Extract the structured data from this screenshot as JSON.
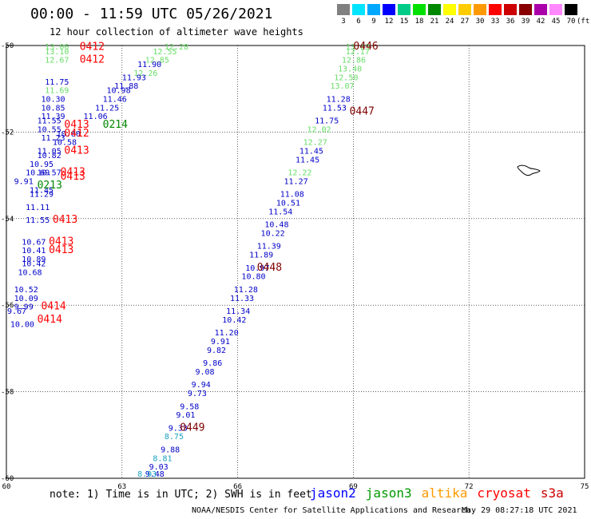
{
  "header": {
    "title": "00:00 - 11:59 UTC 05/26/2021",
    "subtitle": "12 hour collection of altimeter wave heights"
  },
  "legend": {
    "values": [
      "3",
      "6",
      "9",
      "12",
      "15",
      "18",
      "21",
      "24",
      "27",
      "30",
      "33",
      "36",
      "39",
      "42",
      "45",
      "70"
    ],
    "unit": "(ft)",
    "colors": [
      "#808080",
      "#00e5ff",
      "#00a8ff",
      "#0000ff",
      "#00cc88",
      "#00e000",
      "#008800",
      "#ffff00",
      "#ffcc00",
      "#ff9900",
      "#ff0000",
      "#cc0000",
      "#880000",
      "#aa00aa",
      "#ff88ff",
      "#000000"
    ]
  },
  "map": {
    "lon_ticks": [
      "60",
      "63",
      "66",
      "69",
      "72",
      "75"
    ],
    "lat_ticks": [
      "-50",
      "-52",
      "-54",
      "-56",
      "-58",
      "-60"
    ],
    "lon_range": [
      60,
      75
    ],
    "lat_range": [
      -60,
      -50
    ],
    "gridlines": true
  },
  "colors": {
    "blue": "#0000c8",
    "lightgreen": "#66dd66",
    "green": "#008800",
    "cyan": "#1aa0c0",
    "red": "#ff0000",
    "darkred": "#800000"
  },
  "observations": [
    {
      "v": "13.63",
      "lon": 68.8,
      "lat": -50.0,
      "c": "lightgreen"
    },
    {
      "v": "12.17",
      "lon": 68.8,
      "lat": -50.2,
      "c": "lightgreen"
    },
    {
      "v": "12.86",
      "lon": 68.7,
      "lat": -50.4,
      "c": "lightgreen"
    },
    {
      "v": "13.40",
      "lon": 68.6,
      "lat": -50.6,
      "c": "lightgreen"
    },
    {
      "v": "12.50",
      "lon": 68.5,
      "lat": -50.8,
      "c": "lightgreen"
    },
    {
      "v": "13.07",
      "lon": 68.4,
      "lat": -51.0,
      "c": "lightgreen"
    },
    {
      "v": "11.28",
      "lon": 68.3,
      "lat": -51.3,
      "c": "blue"
    },
    {
      "v": "11.53",
      "lon": 68.2,
      "lat": -51.5,
      "c": "blue"
    },
    {
      "v": "11.75",
      "lon": 68.0,
      "lat": -51.8,
      "c": "blue"
    },
    {
      "v": "12.02",
      "lon": 67.8,
      "lat": -52.0,
      "c": "lightgreen"
    },
    {
      "v": "12.27",
      "lon": 67.7,
      "lat": -52.3,
      "c": "lightgreen"
    },
    {
      "v": "11.45",
      "lon": 67.6,
      "lat": -52.5,
      "c": "blue"
    },
    {
      "v": "11.45",
      "lon": 67.5,
      "lat": -52.7,
      "c": "blue"
    },
    {
      "v": "12.22",
      "lon": 67.3,
      "lat": -53.0,
      "c": "lightgreen"
    },
    {
      "v": "11.27",
      "lon": 67.2,
      "lat": -53.2,
      "c": "blue"
    },
    {
      "v": "11.08",
      "lon": 67.1,
      "lat": -53.5,
      "c": "blue"
    },
    {
      "v": "10.51",
      "lon": 67.0,
      "lat": -53.7,
      "c": "blue"
    },
    {
      "v": "11.54",
      "lon": 66.8,
      "lat": -53.9,
      "c": "blue"
    },
    {
      "v": "10.48",
      "lon": 66.7,
      "lat": -54.2,
      "c": "blue"
    },
    {
      "v": "10.22",
      "lon": 66.6,
      "lat": -54.4,
      "c": "blue"
    },
    {
      "v": "11.39",
      "lon": 66.5,
      "lat": -54.7,
      "c": "blue"
    },
    {
      "v": "11.89",
      "lon": 66.3,
      "lat": -54.9,
      "c": "blue"
    },
    {
      "v": "10.97",
      "lon": 66.2,
      "lat": -55.2,
      "c": "blue"
    },
    {
      "v": "10.80",
      "lon": 66.1,
      "lat": -55.4,
      "c": "blue"
    },
    {
      "v": "11.28",
      "lon": 65.9,
      "lat": -55.7,
      "c": "blue"
    },
    {
      "v": "11.33",
      "lon": 65.8,
      "lat": -55.9,
      "c": "blue"
    },
    {
      "v": "11.34",
      "lon": 65.7,
      "lat": -56.2,
      "c": "blue"
    },
    {
      "v": "10.42",
      "lon": 65.6,
      "lat": -56.4,
      "c": "blue"
    },
    {
      "v": "11.20",
      "lon": 65.4,
      "lat": -56.7,
      "c": "blue"
    },
    {
      "v": "9.91",
      "lon": 65.3,
      "lat": -56.9,
      "c": "blue"
    },
    {
      "v": "9.82",
      "lon": 65.2,
      "lat": -57.1,
      "c": "blue"
    },
    {
      "v": "9.86",
      "lon": 65.1,
      "lat": -57.4,
      "c": "blue"
    },
    {
      "v": "9.08",
      "lon": 64.9,
      "lat": -57.6,
      "c": "blue"
    },
    {
      "v": "9.94",
      "lon": 64.8,
      "lat": -57.9,
      "c": "blue"
    },
    {
      "v": "9.73",
      "lon": 64.7,
      "lat": -58.1,
      "c": "blue"
    },
    {
      "v": "9.58",
      "lon": 64.5,
      "lat": -58.4,
      "c": "blue"
    },
    {
      "v": "9.01",
      "lon": 64.4,
      "lat": -58.6,
      "c": "blue"
    },
    {
      "v": "9.33",
      "lon": 64.2,
      "lat": -58.9,
      "c": "blue"
    },
    {
      "v": "8.75",
      "lon": 64.1,
      "lat": -59.1,
      "c": "cyan"
    },
    {
      "v": "9.88",
      "lon": 64.0,
      "lat": -59.4,
      "c": "blue"
    },
    {
      "v": "8.81",
      "lon": 63.8,
      "lat": -59.6,
      "c": "cyan"
    },
    {
      "v": "9.03",
      "lon": 63.7,
      "lat": -59.8,
      "c": "blue"
    },
    {
      "v": "9.48",
      "lon": 63.6,
      "lat": -60.1,
      "c": "blue"
    },
    {
      "v": "8.93",
      "lon": 63.4,
      "lat": -60.3,
      "c": "cyan"
    },
    {
      "v": "13.06",
      "lon": 61.0,
      "lat": -50.0,
      "c": "lightgreen"
    },
    {
      "v": "13.10",
      "lon": 61.0,
      "lat": -50.2,
      "c": "lightgreen"
    },
    {
      "v": "12.67",
      "lon": 61.0,
      "lat": -50.4,
      "c": "lightgreen"
    },
    {
      "v": "12.28",
      "lon": 64.1,
      "lat": -50.0,
      "c": "lightgreen"
    },
    {
      "v": "12.55",
      "lon": 63.8,
      "lat": -50.2,
      "c": "lightgreen"
    },
    {
      "v": "12.85",
      "lon": 63.6,
      "lat": -50.4,
      "c": "lightgreen"
    },
    {
      "v": "11.90",
      "lon": 63.4,
      "lat": -50.5,
      "c": "blue"
    },
    {
      "v": "12.26",
      "lon": 63.3,
      "lat": -50.7,
      "c": "lightgreen"
    },
    {
      "v": "11.93",
      "lon": 63.0,
      "lat": -50.8,
      "c": "blue"
    },
    {
      "v": "11.88",
      "lon": 62.8,
      "lat": -51.0,
      "c": "blue"
    },
    {
      "v": "10.98",
      "lon": 62.6,
      "lat": -51.1,
      "c": "blue"
    },
    {
      "v": "11.46",
      "lon": 62.5,
      "lat": -51.3,
      "c": "blue"
    },
    {
      "v": "11.25",
      "lon": 62.3,
      "lat": -51.5,
      "c": "blue"
    },
    {
      "v": "11.06",
      "lon": 62.0,
      "lat": -51.7,
      "c": "blue"
    },
    {
      "v": "11.75",
      "lon": 61.0,
      "lat": -50.9,
      "c": "blue"
    },
    {
      "v": "11.69",
      "lon": 61.0,
      "lat": -51.1,
      "c": "lightgreen"
    },
    {
      "v": "10.30",
      "lon": 60.9,
      "lat": -51.3,
      "c": "blue"
    },
    {
      "v": "10.85",
      "lon": 60.9,
      "lat": -51.5,
      "c": "blue"
    },
    {
      "v": "11.39",
      "lon": 60.9,
      "lat": -51.7,
      "c": "blue"
    },
    {
      "v": "11.55",
      "lon": 60.8,
      "lat": -51.8,
      "c": "blue"
    },
    {
      "v": "10.55",
      "lon": 60.8,
      "lat": -52.0,
      "c": "blue"
    },
    {
      "v": "10.60",
      "lon": 61.3,
      "lat": -52.1,
      "c": "blue"
    },
    {
      "v": "11.23",
      "lon": 60.9,
      "lat": -52.2,
      "c": "blue"
    },
    {
      "v": "10.58",
      "lon": 61.2,
      "lat": -52.3,
      "c": "blue"
    },
    {
      "v": "11.05",
      "lon": 60.8,
      "lat": -52.5,
      "c": "blue"
    },
    {
      "v": "10.82",
      "lon": 60.8,
      "lat": -52.6,
      "c": "blue"
    },
    {
      "v": "10.95",
      "lon": 60.6,
      "lat": -52.8,
      "c": "blue"
    },
    {
      "v": "10.69",
      "lon": 60.5,
      "lat": -53.0,
      "c": "blue"
    },
    {
      "v": "10.57",
      "lon": 60.8,
      "lat": -53.0,
      "c": "blue"
    },
    {
      "v": "9.91",
      "lon": 60.2,
      "lat": -53.2,
      "c": "blue"
    },
    {
      "v": "11.45",
      "lon": 60.6,
      "lat": -53.4,
      "c": "blue"
    },
    {
      "v": "11.29",
      "lon": 60.6,
      "lat": -53.5,
      "c": "blue"
    },
    {
      "v": "11.11",
      "lon": 60.5,
      "lat": -53.8,
      "c": "blue"
    },
    {
      "v": "11.55",
      "lon": 60.5,
      "lat": -54.1,
      "c": "blue"
    },
    {
      "v": "10.67",
      "lon": 60.4,
      "lat": -54.6,
      "c": "blue"
    },
    {
      "v": "10.41",
      "lon": 60.4,
      "lat": -54.8,
      "c": "blue"
    },
    {
      "v": "10.89",
      "lon": 60.4,
      "lat": -55.0,
      "c": "blue"
    },
    {
      "v": "10.42",
      "lon": 60.4,
      "lat": -55.1,
      "c": "blue"
    },
    {
      "v": "10.68",
      "lon": 60.3,
      "lat": -55.3,
      "c": "blue"
    },
    {
      "v": "10.52",
      "lon": 60.2,
      "lat": -55.7,
      "c": "blue"
    },
    {
      "v": "10.09",
      "lon": 60.2,
      "lat": -55.9,
      "c": "blue"
    },
    {
      "v": "9.99",
      "lon": 60.2,
      "lat": -56.1,
      "c": "blue"
    },
    {
      "v": "9.67",
      "lon": 60.0,
      "lat": -56.2,
      "c": "blue"
    },
    {
      "v": "10.00",
      "lon": 60.1,
      "lat": -56.5,
      "c": "blue"
    }
  ],
  "time_labels": [
    {
      "t": "0446",
      "lon": 69.0,
      "lat": -50.0,
      "c": "darkred"
    },
    {
      "t": "0447",
      "lon": 68.9,
      "lat": -51.6,
      "c": "darkred"
    },
    {
      "t": "0448",
      "lon": 66.5,
      "lat": -55.2,
      "c": "darkred"
    },
    {
      "t": "0449",
      "lon": 64.5,
      "lat": -58.9,
      "c": "darkred"
    },
    {
      "t": "0412",
      "lon": 61.9,
      "lat": -50.1,
      "c": "red"
    },
    {
      "t": "0412",
      "lon": 61.9,
      "lat": -50.4,
      "c": "red"
    },
    {
      "t": "0214",
      "lon": 62.5,
      "lat": -51.9,
      "c": "green"
    },
    {
      "t": "0413",
      "lon": 61.5,
      "lat": -51.9,
      "c": "red"
    },
    {
      "t": "0412",
      "lon": 61.5,
      "lat": -52.1,
      "c": "red"
    },
    {
      "t": "0413",
      "lon": 61.5,
      "lat": -52.5,
      "c": "red"
    },
    {
      "t": "0413",
      "lon": 61.4,
      "lat": -53.0,
      "c": "red"
    },
    {
      "t": "0413",
      "lon": 61.4,
      "lat": -53.1,
      "c": "red"
    },
    {
      "t": "0213",
      "lon": 60.8,
      "lat": -53.3,
      "c": "green"
    },
    {
      "t": "0413",
      "lon": 61.2,
      "lat": -54.1,
      "c": "red"
    },
    {
      "t": "0413",
      "lon": 61.1,
      "lat": -54.6,
      "c": "red"
    },
    {
      "t": "0413",
      "lon": 61.1,
      "lat": -54.8,
      "c": "red"
    },
    {
      "t": "0414",
      "lon": 60.9,
      "lat": -56.1,
      "c": "red"
    },
    {
      "t": "0414",
      "lon": 60.8,
      "lat": -56.4,
      "c": "red"
    }
  ],
  "footer": {
    "note": "note: 1) Time is in UTC; 2) SWH is in feet",
    "satellites": [
      {
        "name": "jason2",
        "color": "#0000ff"
      },
      {
        "name": "jason3",
        "color": "#009900"
      },
      {
        "name": "altika",
        "color": "#ff9900"
      },
      {
        "name": "cryosat",
        "color": "#ff0000"
      },
      {
        "name": "s3a",
        "color": "#cc0000"
      }
    ],
    "credit": "NOAA/NESDIS Center for Satellite Applications and Research",
    "timestamp": "May 29 08:27:18 UTC 2021"
  }
}
